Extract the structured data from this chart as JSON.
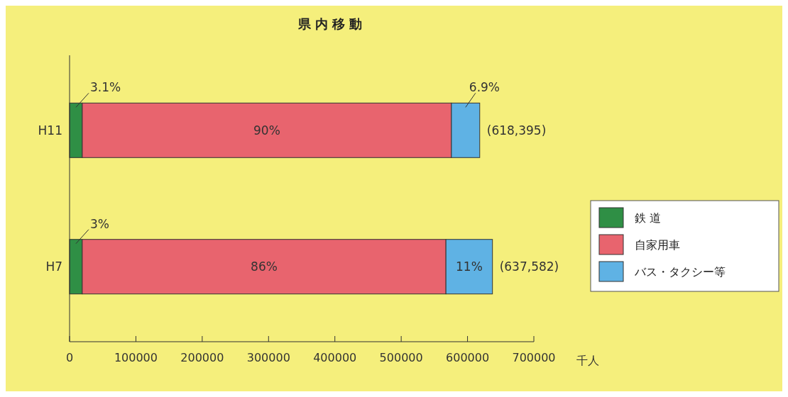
{
  "chart_data": {
    "type": "bar",
    "orientation": "horizontal",
    "stacked": true,
    "title": "県 内 移 動",
    "xlabel": "千人",
    "categories": [
      "H11",
      "H7"
    ],
    "series": [
      {
        "name": "鉄 道",
        "color": "#2f8f45",
        "values": [
          19170,
          19127
        ]
      },
      {
        "name": "自家用車",
        "color": "#e8646e",
        "values": [
          556556,
          548321
        ]
      },
      {
        "name": "バス・タクシー等",
        "color": "#5fb2e4",
        "values": [
          42669,
          70134
        ]
      }
    ],
    "annotations": [
      "3.1%",
      "90%",
      "6.9%",
      "3%",
      "86%",
      "11%"
    ],
    "totals": [
      "(618,395)",
      "(637,582)"
    ],
    "xlim": [
      0,
      700000
    ],
    "xticks": [
      0,
      100000,
      200000,
      300000,
      400000,
      500000,
      600000,
      700000
    ],
    "grid": false,
    "legend": "right"
  }
}
